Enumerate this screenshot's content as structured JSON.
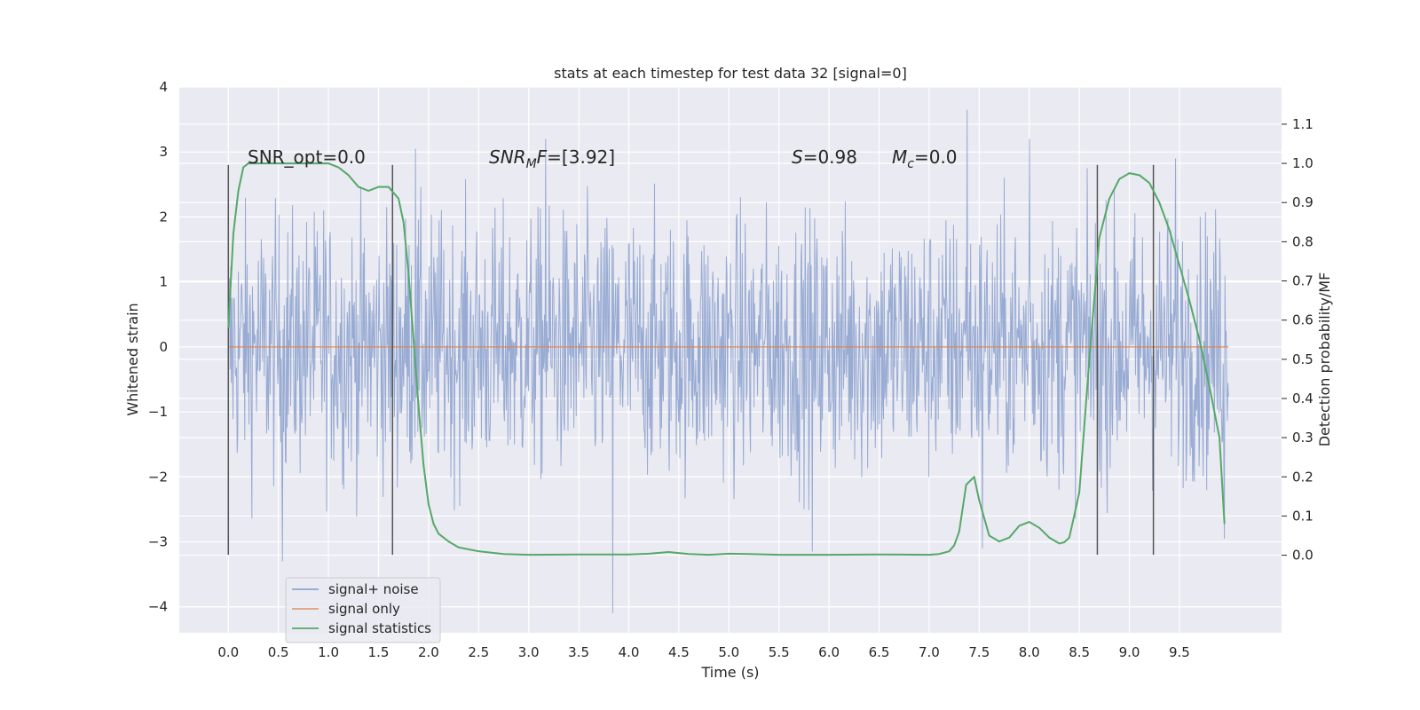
{
  "chart_data": {
    "type": "line",
    "title": "stats at each timestep for test data 32 [signal=0]",
    "xlabel": "Time (s)",
    "ylabel": "Whitened strain",
    "y2label": "Detection probability/MF",
    "xlim": [
      -0.49,
      10.52
    ],
    "ylim": [
      -4.4,
      4.0
    ],
    "y2lim": [
      -0.198,
      1.195
    ],
    "xticks": [
      0.0,
      0.5,
      1.0,
      1.5,
      2.0,
      2.5,
      3.0,
      3.5,
      4.0,
      4.5,
      5.0,
      5.5,
      6.0,
      6.5,
      7.0,
      7.5,
      8.0,
      8.5,
      9.0,
      9.5
    ],
    "xtick_labels": [
      "0.0",
      "0.5",
      "1.0",
      "1.5",
      "2.0",
      "2.5",
      "3.0",
      "3.5",
      "4.0",
      "4.5",
      "5.0",
      "5.5",
      "6.0",
      "6.5",
      "7.0",
      "7.5",
      "8.0",
      "8.5",
      "9.0",
      "9.5"
    ],
    "yticks": [
      -4,
      -3,
      -2,
      -1,
      0,
      1,
      2,
      3,
      4
    ],
    "ytick_labels": [
      "−4",
      "−3",
      "−2",
      "−1",
      "0",
      "1",
      "2",
      "3",
      "4"
    ],
    "y2ticks": [
      0.0,
      0.1,
      0.2,
      0.3,
      0.4,
      0.5,
      0.6,
      0.7,
      0.8,
      0.9,
      1.0,
      1.1
    ],
    "y2tick_labels": [
      "0.0",
      "0.1",
      "0.2",
      "0.3",
      "0.4",
      "0.5",
      "0.6",
      "0.7",
      "0.8",
      "0.9",
      "1.0",
      "1.1"
    ],
    "grid": true,
    "legend_position": "lower-left",
    "annotations": {
      "snr_opt": "SNR_opt=0.0",
      "snr_mf_sym": "SNR",
      "snr_mf_sub": "M",
      "snr_mf_mid": "F",
      "snr_mf_val": "=[3.92]",
      "s_sym": "S",
      "s_val": "=0.98",
      "mc_sym": "M",
      "mc_sub": "c",
      "mc_val": "=0.0"
    },
    "vertical_lines": {
      "x": [
        0.0,
        1.64,
        8.68,
        9.24
      ],
      "y_range": [
        -3.2,
        2.8
      ]
    },
    "series": [
      {
        "name": "signal+ noise",
        "color": "#8fa4cf",
        "x_range": [
          0.0,
          9.99
        ],
        "noise_amplitude": 1.0,
        "peaks": [
          [
            0.54,
            -3.3
          ],
          [
            0.95,
            2.1
          ],
          [
            1.87,
            3.05
          ],
          [
            3.17,
            3.2
          ],
          [
            3.84,
            -4.1
          ],
          [
            5.83,
            -3.15
          ],
          [
            7.38,
            3.65
          ],
          [
            7.53,
            -3.1
          ],
          [
            8.0,
            3.2
          ],
          [
            9.46,
            2.9
          ],
          [
            9.95,
            -2.95
          ]
        ]
      },
      {
        "name": "signal only",
        "color": "#dd8452",
        "x": [
          0.0,
          9.99
        ],
        "y": [
          0.0,
          0.0
        ]
      },
      {
        "name": "signal statistics",
        "color": "#55a868",
        "axis": "right",
        "x": [
          0.0,
          0.05,
          0.1,
          0.15,
          0.2,
          0.3,
          0.5,
          0.7,
          0.9,
          1.0,
          1.1,
          1.2,
          1.3,
          1.4,
          1.5,
          1.6,
          1.7,
          1.75,
          1.8,
          1.85,
          1.9,
          1.95,
          2.0,
          2.05,
          2.1,
          2.2,
          2.3,
          2.5,
          2.75,
          3.0,
          3.5,
          4.0,
          4.2,
          4.4,
          4.6,
          4.8,
          5.0,
          5.2,
          5.5,
          6.0,
          6.5,
          7.0,
          7.1,
          7.2,
          7.25,
          7.3,
          7.37,
          7.45,
          7.5,
          7.6,
          7.7,
          7.8,
          7.9,
          8.0,
          8.1,
          8.2,
          8.3,
          8.35,
          8.4,
          8.5,
          8.6,
          8.7,
          8.8,
          8.9,
          9.0,
          9.1,
          9.2,
          9.3,
          9.4,
          9.5,
          9.6,
          9.7,
          9.8,
          9.9,
          9.95
        ],
        "y": [
          0.58,
          0.82,
          0.93,
          0.99,
          1.0,
          1.0,
          1.0,
          1.0,
          1.0,
          1.0,
          0.99,
          0.97,
          0.94,
          0.93,
          0.94,
          0.94,
          0.91,
          0.85,
          0.72,
          0.55,
          0.38,
          0.23,
          0.13,
          0.08,
          0.055,
          0.035,
          0.02,
          0.01,
          0.003,
          0.001,
          0.002,
          0.002,
          0.004,
          0.008,
          0.003,
          0.001,
          0.004,
          0.003,
          0.001,
          0.001,
          0.002,
          0.001,
          0.003,
          0.01,
          0.025,
          0.06,
          0.18,
          0.2,
          0.14,
          0.05,
          0.035,
          0.045,
          0.075,
          0.085,
          0.07,
          0.045,
          0.03,
          0.033,
          0.045,
          0.16,
          0.5,
          0.81,
          0.91,
          0.96,
          0.975,
          0.97,
          0.95,
          0.9,
          0.83,
          0.74,
          0.65,
          0.55,
          0.43,
          0.3,
          0.08
        ]
      }
    ]
  }
}
